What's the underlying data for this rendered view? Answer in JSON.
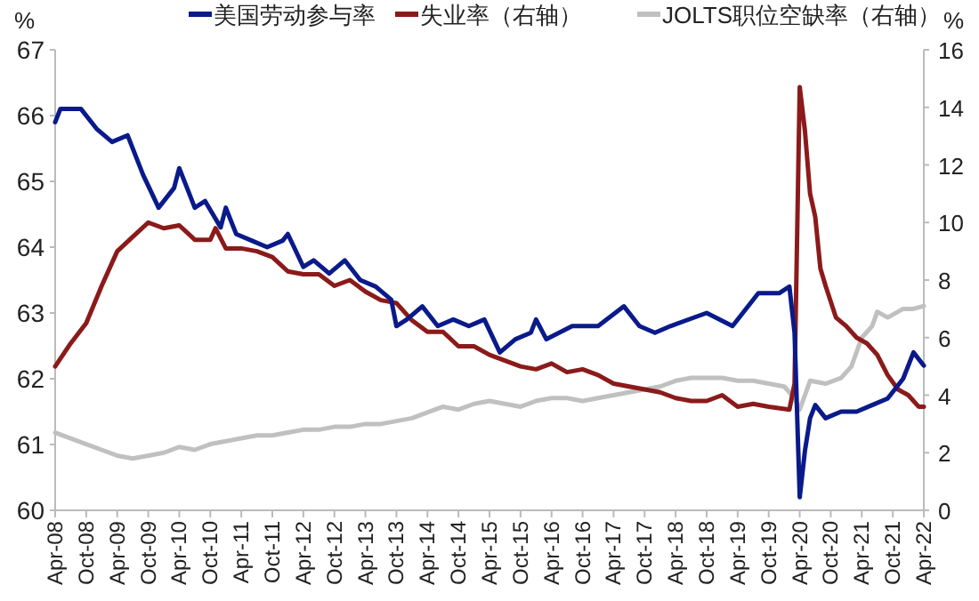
{
  "chart_data": {
    "type": "line",
    "ylabel": "%",
    "y2label": "%",
    "xlim": [
      "2008-04",
      "2022-04"
    ],
    "xticks": [
      {
        "value": "2008-04",
        "label": "Apr-08"
      },
      {
        "value": "2008-10",
        "label": "Oct-08"
      },
      {
        "value": "2009-04",
        "label": "Apr-09"
      },
      {
        "value": "2009-10",
        "label": "Oct-09"
      },
      {
        "value": "2010-04",
        "label": "Apr-10"
      },
      {
        "value": "2010-10",
        "label": "Oct-10"
      },
      {
        "value": "2011-04",
        "label": "Apr-11"
      },
      {
        "value": "2011-10",
        "label": "Oct-11"
      },
      {
        "value": "2012-04",
        "label": "Apr-12"
      },
      {
        "value": "2012-10",
        "label": "Oct-12"
      },
      {
        "value": "2013-04",
        "label": "Apr-13"
      },
      {
        "value": "2013-10",
        "label": "Oct-13"
      },
      {
        "value": "2014-04",
        "label": "Apr-14"
      },
      {
        "value": "2014-10",
        "label": "Oct-14"
      },
      {
        "value": "2015-04",
        "label": "Apr-15"
      },
      {
        "value": "2015-10",
        "label": "Oct-15"
      },
      {
        "value": "2016-04",
        "label": "Apr-16"
      },
      {
        "value": "2016-10",
        "label": "Oct-16"
      },
      {
        "value": "2017-04",
        "label": "Apr-17"
      },
      {
        "value": "2017-10",
        "label": "Oct-17"
      },
      {
        "value": "2018-04",
        "label": "Apr-18"
      },
      {
        "value": "2018-10",
        "label": "Oct-18"
      },
      {
        "value": "2019-04",
        "label": "Apr-19"
      },
      {
        "value": "2019-10",
        "label": "Oct-19"
      },
      {
        "value": "2020-04",
        "label": "Apr-20"
      },
      {
        "value": "2020-10",
        "label": "Oct-20"
      },
      {
        "value": "2021-04",
        "label": "Apr-21"
      },
      {
        "value": "2021-10",
        "label": "Oct-21"
      },
      {
        "value": "2022-04",
        "label": "Apr-22"
      }
    ],
    "ylim": [
      60,
      67
    ],
    "yticks": [
      60,
      61,
      62,
      63,
      64,
      65,
      66,
      67
    ],
    "y2lim": [
      0,
      16
    ],
    "y2ticks": [
      0,
      2,
      4,
      6,
      8,
      10,
      12,
      14,
      16
    ],
    "legend": "top",
    "grid": false,
    "series": [
      {
        "name": "美国劳动参与率",
        "color": "#0a1a8a",
        "x": [
          "2008-04",
          "2008-05",
          "2008-09",
          "2008-12",
          "2009-03",
          "2009-06",
          "2009-09",
          "2009-12",
          "2010-03",
          "2010-04",
          "2010-07",
          "2010-09",
          "2010-12",
          "2011-01",
          "2011-03",
          "2011-06",
          "2011-09",
          "2011-12",
          "2012-01",
          "2012-04",
          "2012-06",
          "2012-09",
          "2012-12",
          "2013-03",
          "2013-06",
          "2013-09",
          "2013-10",
          "2013-12",
          "2014-03",
          "2014-06",
          "2014-09",
          "2014-12",
          "2015-03",
          "2015-06",
          "2015-09",
          "2015-12",
          "2016-01",
          "2016-03",
          "2016-08",
          "2017-01",
          "2017-06",
          "2017-09",
          "2017-12",
          "2018-03",
          "2018-10",
          "2019-03",
          "2019-08",
          "2019-12",
          "2020-02",
          "2020-03",
          "2020-04",
          "2020-05",
          "2020-06",
          "2020-07",
          "2020-09",
          "2020-12",
          "2021-03",
          "2021-06",
          "2021-09",
          "2021-12",
          "2022-02",
          "2022-04"
        ],
        "values": [
          65.9,
          66.1,
          66.1,
          65.8,
          65.6,
          65.7,
          65.1,
          64.6,
          64.9,
          65.2,
          64.6,
          64.7,
          64.3,
          64.6,
          64.2,
          64.1,
          64.0,
          64.1,
          64.2,
          63.7,
          63.8,
          63.6,
          63.8,
          63.5,
          63.4,
          63.2,
          62.8,
          62.9,
          63.1,
          62.8,
          62.9,
          62.8,
          62.9,
          62.4,
          62.6,
          62.7,
          62.9,
          62.6,
          62.8,
          62.8,
          63.1,
          62.8,
          62.7,
          62.8,
          63.0,
          62.8,
          63.3,
          63.3,
          63.4,
          62.7,
          60.2,
          60.9,
          61.4,
          61.6,
          61.4,
          61.5,
          61.5,
          61.6,
          61.7,
          62.0,
          62.4,
          62.2
        ]
      },
      {
        "name": "失业率（右轴）",
        "color": "#8b1a1a",
        "axis": "y2",
        "x": [
          "2008-04",
          "2008-07",
          "2008-10",
          "2009-01",
          "2009-04",
          "2009-07",
          "2009-10",
          "2010-01",
          "2010-04",
          "2010-07",
          "2010-10",
          "2010-11",
          "2011-01",
          "2011-04",
          "2011-07",
          "2011-10",
          "2012-01",
          "2012-04",
          "2012-07",
          "2012-10",
          "2013-01",
          "2013-04",
          "2013-07",
          "2013-10",
          "2014-01",
          "2014-04",
          "2014-07",
          "2014-10",
          "2015-01",
          "2015-04",
          "2015-07",
          "2015-10",
          "2016-01",
          "2016-04",
          "2016-07",
          "2016-10",
          "2017-01",
          "2017-04",
          "2017-07",
          "2017-10",
          "2018-01",
          "2018-04",
          "2018-07",
          "2018-10",
          "2019-01",
          "2019-04",
          "2019-07",
          "2019-10",
          "2020-02",
          "2020-03",
          "2020-04",
          "2020-05",
          "2020-06",
          "2020-07",
          "2020-08",
          "2020-09",
          "2020-11",
          "2021-01",
          "2021-03",
          "2021-05",
          "2021-07",
          "2021-09",
          "2021-11",
          "2022-01",
          "2022-03",
          "2022-04"
        ],
        "values": [
          5.0,
          5.8,
          6.5,
          7.8,
          9.0,
          9.5,
          10.0,
          9.8,
          9.9,
          9.4,
          9.4,
          9.8,
          9.1,
          9.1,
          9.0,
          8.8,
          8.3,
          8.2,
          8.2,
          7.8,
          8.0,
          7.6,
          7.3,
          7.2,
          6.6,
          6.2,
          6.2,
          5.7,
          5.7,
          5.4,
          5.2,
          5.0,
          4.9,
          5.1,
          4.8,
          4.9,
          4.7,
          4.4,
          4.3,
          4.2,
          4.1,
          3.9,
          3.8,
          3.8,
          4.0,
          3.6,
          3.7,
          3.6,
          3.5,
          4.4,
          14.7,
          13.2,
          11.0,
          10.2,
          8.4,
          7.8,
          6.7,
          6.4,
          6.0,
          5.8,
          5.4,
          4.7,
          4.2,
          4.0,
          3.6,
          3.6
        ]
      },
      {
        "name": "JOLTS职位空缺率（右轴）",
        "color": "#c0c0c0",
        "axis": "y2",
        "x": [
          "2008-04",
          "2008-07",
          "2008-10",
          "2009-01",
          "2009-04",
          "2009-07",
          "2009-10",
          "2010-01",
          "2010-04",
          "2010-07",
          "2010-10",
          "2011-01",
          "2011-04",
          "2011-07",
          "2011-10",
          "2012-01",
          "2012-04",
          "2012-07",
          "2012-10",
          "2013-01",
          "2013-04",
          "2013-07",
          "2013-10",
          "2014-01",
          "2014-04",
          "2014-07",
          "2014-10",
          "2015-01",
          "2015-04",
          "2015-07",
          "2015-10",
          "2016-01",
          "2016-04",
          "2016-07",
          "2016-10",
          "2017-01",
          "2017-04",
          "2017-07",
          "2017-10",
          "2018-01",
          "2018-04",
          "2018-07",
          "2018-10",
          "2019-01",
          "2019-04",
          "2019-07",
          "2019-10",
          "2020-01",
          "2020-03",
          "2020-04",
          "2020-06",
          "2020-09",
          "2020-12",
          "2021-02",
          "2021-04",
          "2021-06",
          "2021-07",
          "2021-09",
          "2021-12",
          "2022-02",
          "2022-04"
        ],
        "values": [
          2.7,
          2.5,
          2.3,
          2.1,
          1.9,
          1.8,
          1.9,
          2.0,
          2.2,
          2.1,
          2.3,
          2.4,
          2.5,
          2.6,
          2.6,
          2.7,
          2.8,
          2.8,
          2.9,
          2.9,
          3.0,
          3.0,
          3.1,
          3.2,
          3.4,
          3.6,
          3.5,
          3.7,
          3.8,
          3.7,
          3.6,
          3.8,
          3.9,
          3.9,
          3.8,
          3.9,
          4.0,
          4.1,
          4.2,
          4.3,
          4.5,
          4.6,
          4.6,
          4.6,
          4.5,
          4.5,
          4.4,
          4.3,
          3.9,
          3.5,
          4.5,
          4.4,
          4.6,
          5.0,
          6.0,
          6.4,
          6.9,
          6.7,
          7.0,
          7.0,
          7.1
        ]
      }
    ]
  }
}
